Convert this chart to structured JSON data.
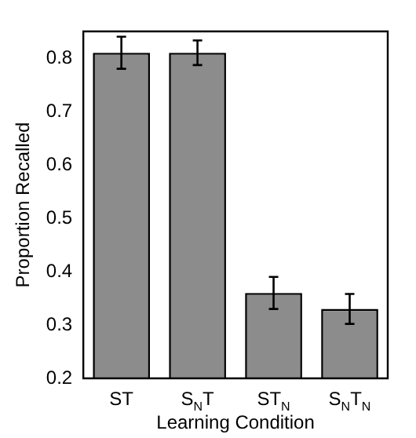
{
  "chart_data": {
    "type": "bar",
    "xlabel": "Learning Condition",
    "ylabel": "Proportion Recalled",
    "categories": [
      "ST",
      "S$_{N}$T",
      "ST$_{N}$",
      "S$_{N}$T$_{N}$"
    ],
    "values": [
      0.81,
      0.81,
      0.36,
      0.33
    ],
    "errors": [
      0.03,
      0.023,
      0.03,
      0.028
    ],
    "color": "#8c8c8c",
    "ylim": [
      0.2,
      0.85
    ],
    "yticks": [
      0.2,
      0.3,
      0.4,
      0.5,
      0.6,
      0.7,
      0.8
    ],
    "grid": false,
    "legend": false
  }
}
